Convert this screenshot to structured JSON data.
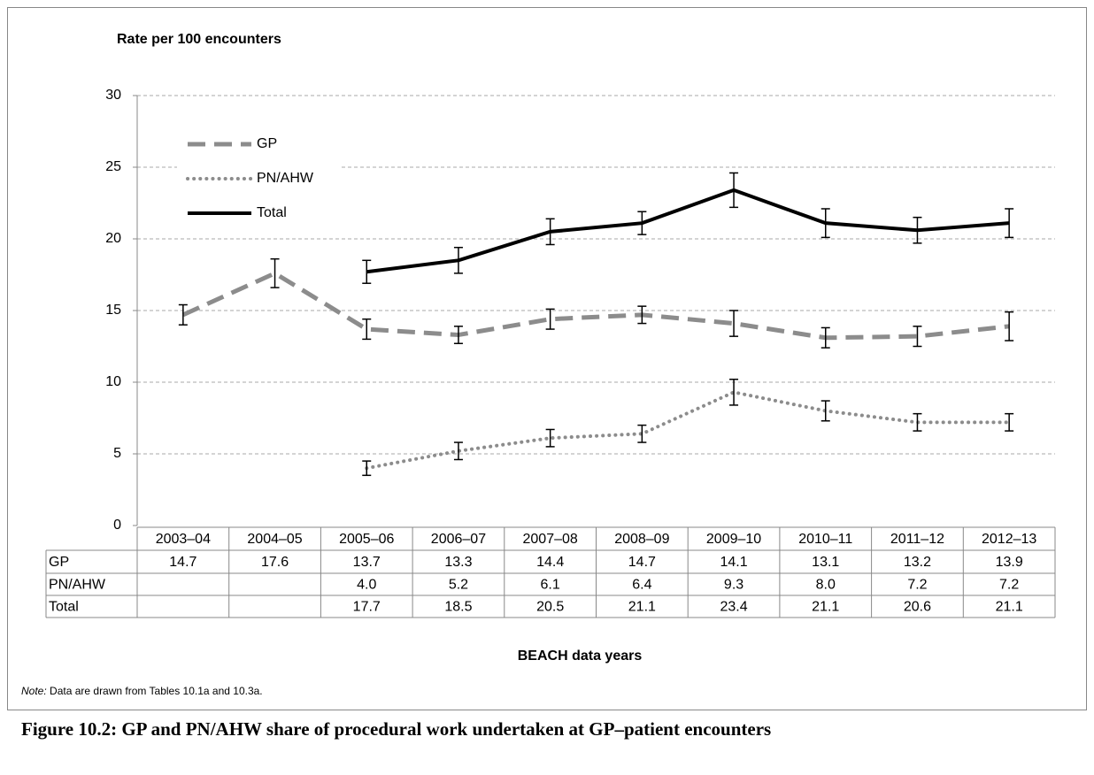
{
  "chart_data": {
    "type": "line",
    "ylabel": "Rate per 100 encounters",
    "xlabel": "BEACH data years",
    "note": {
      "label": "Note:",
      "text": "Data are drawn from Tables 10.1a and 10.3a."
    },
    "title": "Figure 10.2: GP and PN/AHW share of procedural work undertaken at GP–patient encounters",
    "categories": [
      "2003–04",
      "2004–05",
      "2005–06",
      "2006–07",
      "2007–08",
      "2008–09",
      "2009–10",
      "2010–11",
      "2011–12",
      "2012–13"
    ],
    "series": [
      {
        "name": "GP",
        "color": "#8c8c8c",
        "line_style": "dashed",
        "values": [
          14.7,
          17.6,
          13.7,
          13.3,
          14.4,
          14.7,
          14.1,
          13.1,
          13.2,
          13.9
        ],
        "value_labels": [
          "14.7",
          "17.6",
          "13.7",
          "13.3",
          "14.4",
          "14.7",
          "14.1",
          "13.1",
          "13.2",
          "13.9"
        ],
        "errors": [
          0.7,
          1.0,
          0.7,
          0.6,
          0.7,
          0.6,
          0.9,
          0.7,
          0.7,
          1.0
        ]
      },
      {
        "name": "PN/AHW",
        "color": "#8c8c8c",
        "line_style": "dotted",
        "values": [
          null,
          null,
          4.0,
          5.2,
          6.1,
          6.4,
          9.3,
          8.0,
          7.2,
          7.2
        ],
        "value_labels": [
          null,
          null,
          "4.0",
          "5.2",
          "6.1",
          "6.4",
          "9.3",
          "8.0",
          "7.2",
          "7.2"
        ],
        "errors": [
          null,
          null,
          0.5,
          0.6,
          0.6,
          0.6,
          0.9,
          0.7,
          0.6,
          0.6
        ]
      },
      {
        "name": "Total",
        "color": "#000000",
        "line_style": "solid",
        "values": [
          null,
          null,
          17.7,
          18.5,
          20.5,
          21.1,
          23.4,
          21.1,
          20.6,
          21.1
        ],
        "value_labels": [
          null,
          null,
          "17.7",
          "18.5",
          "20.5",
          "21.1",
          "23.4",
          "21.1",
          "20.6",
          "21.1"
        ],
        "errors": [
          null,
          null,
          0.8,
          0.9,
          0.9,
          0.8,
          1.2,
          1.0,
          0.9,
          1.0
        ]
      }
    ],
    "ylim": [
      0,
      30
    ],
    "yticks": [
      0,
      5,
      10,
      15,
      20,
      25,
      30
    ],
    "grid": true
  }
}
